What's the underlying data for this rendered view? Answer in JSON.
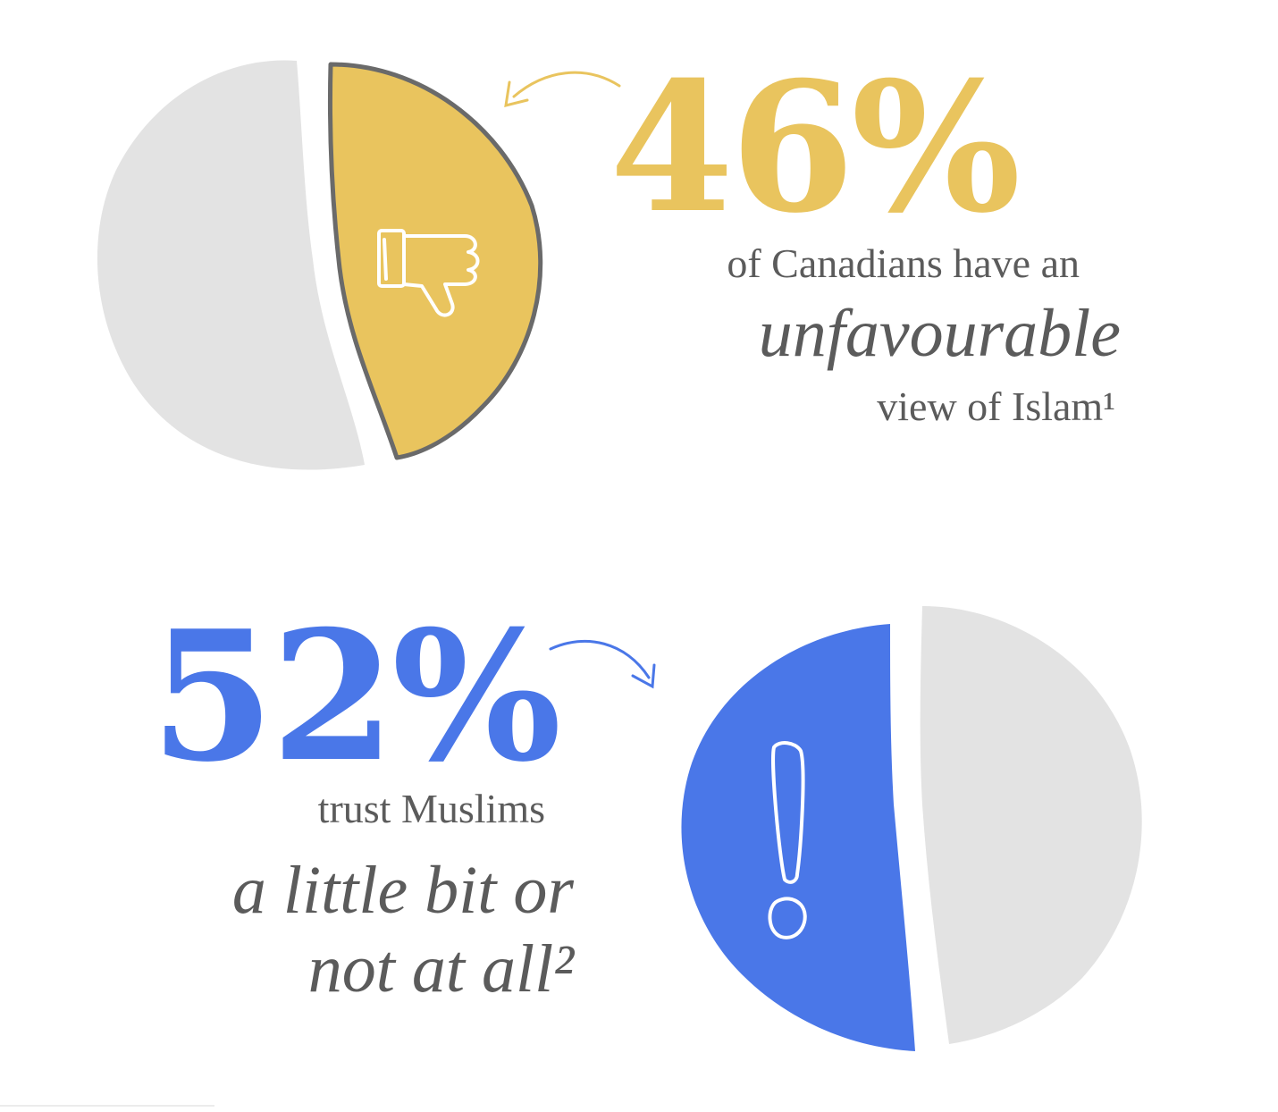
{
  "chart_data": [
    {
      "type": "pie",
      "values": [
        46,
        54
      ],
      "value_label": "46%",
      "highlight_index": 0,
      "colors": [
        "#e9c45e",
        "#e3e3e3"
      ],
      "icon": "thumbs-down-icon",
      "caption": {
        "lead": "of Canadians have an",
        "emphasis": "unfavourable",
        "tail": "view of Islam¹"
      }
    },
    {
      "type": "pie",
      "values": [
        52,
        48
      ],
      "value_label": "52%",
      "highlight_index": 0,
      "colors": [
        "#4a77e8",
        "#e3e3e3"
      ],
      "icon": "exclamation-icon",
      "caption": {
        "lead": "trust Muslims",
        "emphasis": "a little bit or",
        "tail": "not at all²"
      }
    }
  ]
}
